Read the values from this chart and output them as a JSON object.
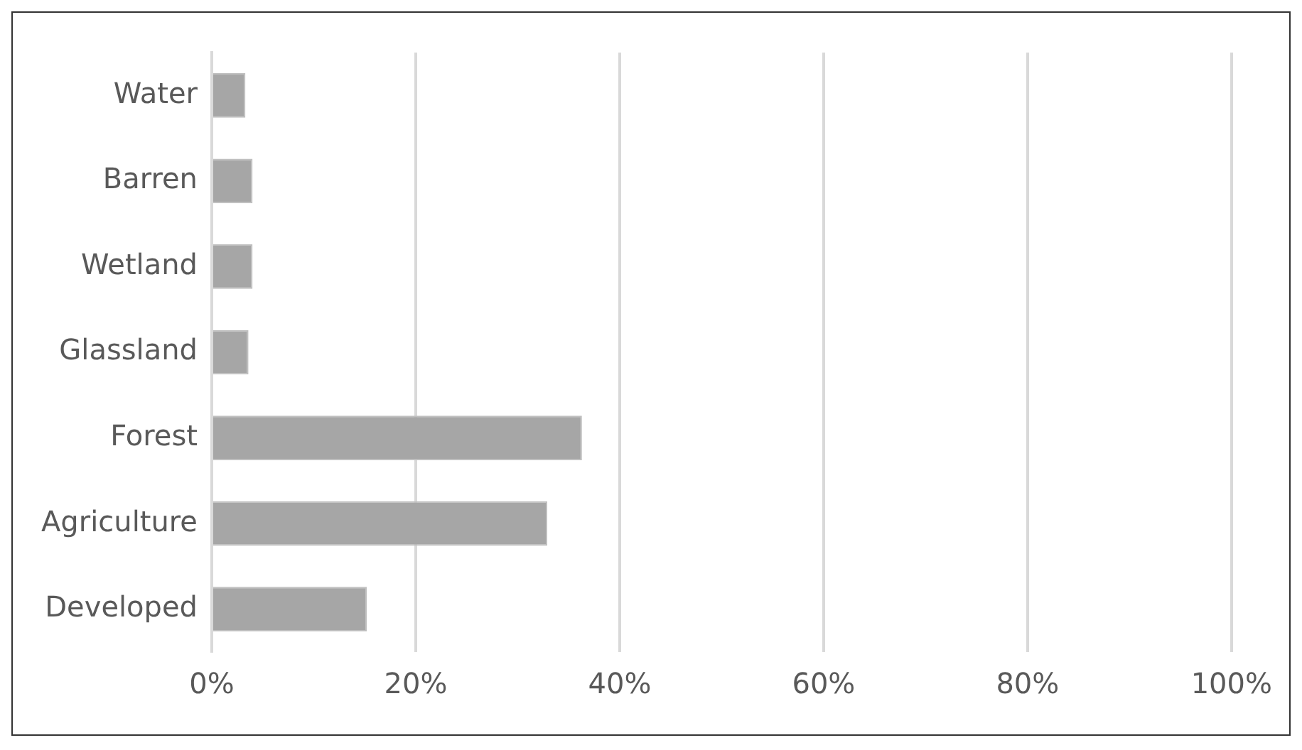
{
  "chart_data": {
    "type": "bar",
    "orientation": "horizontal",
    "categories": [
      "Water",
      "Barren",
      "Wetland",
      "Glassland",
      "Forest",
      "Agriculture",
      "Developed"
    ],
    "values": [
      3.3,
      4.0,
      4.0,
      3.6,
      36.3,
      32.9,
      15.2
    ],
    "color": "#a6a6a6",
    "xlim": [
      0,
      100
    ],
    "xticks": [
      {
        "value": 0,
        "label": "0%"
      },
      {
        "value": 20,
        "label": "20%"
      },
      {
        "value": 40,
        "label": "40%"
      },
      {
        "value": 60,
        "label": "60%"
      },
      {
        "value": 80,
        "label": "80%"
      },
      {
        "value": 100,
        "label": "100%"
      }
    ],
    "grid": "x",
    "legend": false
  }
}
